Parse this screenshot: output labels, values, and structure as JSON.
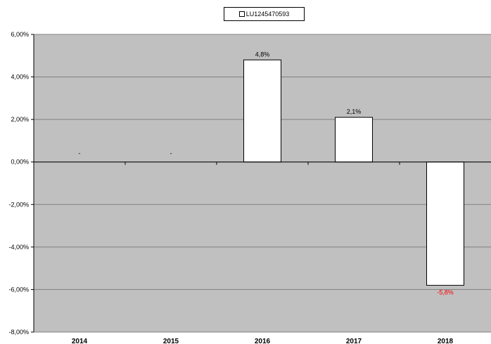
{
  "chart_data": {
    "type": "bar",
    "categories": [
      "2014",
      "2015",
      "2016",
      "2017",
      "2018"
    ],
    "series": [
      {
        "name": "LU1245470593",
        "values": [
          null,
          null,
          4.8,
          2.1,
          -5.8
        ],
        "data_labels": [
          "-",
          "-",
          "4,8%",
          "2,1%",
          "-5,8%"
        ],
        "color": "#ffffff"
      }
    ],
    "yticks": [
      "6,00%",
      "4,00%",
      "2,00%",
      "0,00%",
      "-2,00%",
      "-4,00%",
      "-6,00%",
      "-8,00%"
    ],
    "ylim": [
      -8,
      6
    ],
    "ystep": 2,
    "grid": true,
    "legend": "top-center",
    "colors": {
      "plot_bg": "#c0c0c0",
      "bar_fill": "#ffffff",
      "bar_stroke": "#000000",
      "gridline": "#808080",
      "negative_label": "#ff0000",
      "label": "#000000"
    }
  }
}
